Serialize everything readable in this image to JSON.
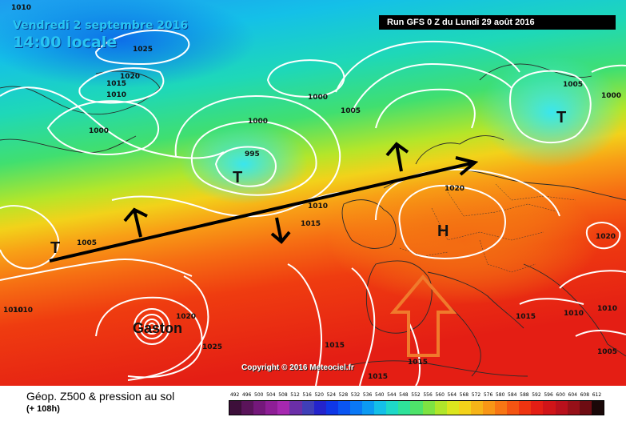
{
  "header": {
    "date": "Vendredi 2 septembre 2016",
    "time": "14:00 locale",
    "run": "Run GFS 0 Z du Lundi 29 août 2016",
    "copyright": "Copyright © 2016 Meteociel.fr"
  },
  "legend": {
    "title": "Géop. Z500 & pression au sol",
    "subtitle": "(+ 108h)",
    "scale_values": [
      "492",
      "496",
      "500",
      "504",
      "508",
      "512",
      "516",
      "520",
      "524",
      "528",
      "532",
      "536",
      "540",
      "544",
      "548",
      "552",
      "556",
      "560",
      "564",
      "568",
      "572",
      "576",
      "580",
      "584",
      "588",
      "592",
      "596",
      "600",
      "604",
      "608",
      "612"
    ],
    "scale_colors": [
      "#3d0f3a",
      "#5a145a",
      "#74187a",
      "#8e1e96",
      "#a628b0",
      "#6b2fa8",
      "#3f3fb8",
      "#2424cc",
      "#0f37e6",
      "#0a55f2",
      "#0a78f5",
      "#0c9af2",
      "#14bfe8",
      "#1ed8c8",
      "#2ee29a",
      "#4ee36a",
      "#7ee342",
      "#b0e62a",
      "#dbe61e",
      "#f3d21a",
      "#f6b418",
      "#f89616",
      "#f87614",
      "#f45412",
      "#ee3410",
      "#e41e14",
      "#d01418",
      "#b8101c",
      "#961018",
      "#6e0c12",
      "#1a0808"
    ]
  },
  "map": {
    "pressure_labels": [
      "1010",
      "1025",
      "1020",
      "1015",
      "1010",
      "1000",
      "1000",
      "1000",
      "995",
      "1005",
      "1005",
      "1010",
      "1015",
      "1020",
      "1005",
      "1000",
      "1020",
      "1020",
      "1010",
      "1015",
      "1010",
      "1025",
      "1015",
      "1015",
      "1015",
      "1005",
      "1010",
      "1010"
    ],
    "systems": [
      {
        "label": "T"
      },
      {
        "label": "T"
      },
      {
        "label": "T"
      },
      {
        "label": "H"
      },
      {
        "label": "Gaston"
      }
    ]
  }
}
